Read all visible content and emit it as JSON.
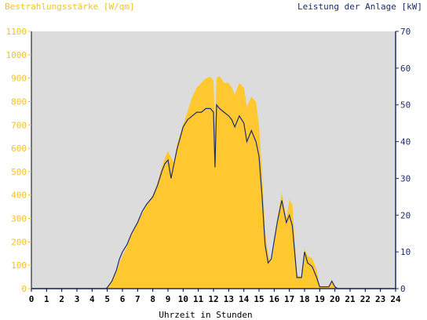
{
  "chart_data": {
    "type": "area",
    "title_left": "Bestrahlungsstärke [W/qm]",
    "title_right": "Leistung der Anlage [kW]",
    "xlabel": "Uhrzeit in Stunden",
    "xlim": [
      0,
      24
    ],
    "ylim_left": [
      0,
      1100
    ],
    "ylim_right": [
      0,
      70
    ],
    "x_ticks": [
      0,
      1,
      2,
      3,
      4,
      5,
      6,
      7,
      8,
      9,
      10,
      11,
      12,
      13,
      14,
      15,
      16,
      17,
      18,
      19,
      20,
      21,
      22,
      23,
      24
    ],
    "y_ticks_left": [
      0,
      100,
      200,
      300,
      400,
      500,
      600,
      700,
      800,
      900,
      1000,
      1100
    ],
    "y_ticks_right": [
      0,
      10,
      20,
      30,
      40,
      50,
      60,
      70
    ],
    "grid": false,
    "colors": {
      "irradiance": "#ffc830",
      "power": "#1e2d6b",
      "background": "#dcdcdc",
      "left_axis": "#f5c02a",
      "right_axis": "#1e2d6b"
    },
    "series": [
      {
        "axis": "left",
        "x": [
          0,
          4.9,
          5.0,
          5.3,
          5.6,
          5.8,
          6.0,
          6.3,
          6.6,
          7.0,
          7.3,
          7.6,
          8.0,
          8.3,
          8.6,
          8.8,
          9.0,
          9.2,
          9.4,
          9.6,
          9.8,
          10.0,
          10.3,
          10.6,
          10.9,
          11.2,
          11.5,
          11.8,
          12.0,
          12.1,
          12.2,
          12.4,
          12.7,
          13.0,
          13.2,
          13.4,
          13.7,
          14.0,
          14.2,
          14.5,
          14.8,
          15.0,
          15.2,
          15.4,
          15.6,
          15.8,
          16.0,
          16.2,
          16.5,
          16.8,
          17.0,
          17.2,
          17.5,
          17.8,
          18.0,
          18.2,
          18.5,
          18.8,
          19.0,
          19.3,
          19.6,
          19.8,
          20.0,
          20.2,
          20.4,
          24
        ],
        "y": [
          0,
          0,
          5,
          30,
          70,
          110,
          140,
          180,
          230,
          280,
          320,
          360,
          400,
          450,
          520,
          560,
          590,
          560,
          540,
          620,
          660,
          700,
          760,
          820,
          860,
          880,
          900,
          905,
          890,
          700,
          900,
          910,
          880,
          880,
          860,
          830,
          880,
          860,
          780,
          820,
          800,
          700,
          500,
          250,
          150,
          110,
          180,
          300,
          410,
          300,
          380,
          360,
          60,
          50,
          170,
          140,
          130,
          80,
          10,
          10,
          10,
          40,
          10,
          0,
          0,
          0
        ]
      },
      {
        "axis": "right",
        "x": [
          0,
          4.9,
          5.0,
          5.3,
          5.6,
          5.8,
          6.0,
          6.3,
          6.6,
          7.0,
          7.3,
          7.6,
          8.0,
          8.3,
          8.6,
          8.8,
          9.0,
          9.2,
          9.4,
          9.6,
          9.8,
          10.0,
          10.3,
          10.6,
          10.9,
          11.2,
          11.5,
          11.8,
          12.0,
          12.1,
          12.2,
          12.4,
          12.7,
          13.0,
          13.2,
          13.4,
          13.7,
          14.0,
          14.2,
          14.5,
          14.8,
          15.0,
          15.2,
          15.4,
          15.6,
          15.8,
          16.0,
          16.2,
          16.5,
          16.8,
          17.0,
          17.2,
          17.5,
          17.8,
          18.0,
          18.2,
          18.5,
          18.8,
          19.0,
          19.3,
          19.6,
          19.8,
          20.0,
          20.2,
          20.4,
          24
        ],
        "y": [
          0,
          0,
          0.3,
          2,
          5,
          8,
          10,
          12,
          15,
          18,
          21,
          23,
          25,
          28,
          32,
          34,
          35,
          30,
          34,
          38,
          41,
          44,
          46,
          47,
          48,
          48,
          49,
          49,
          48,
          33,
          50,
          49,
          48,
          47,
          46,
          44,
          47,
          45,
          40,
          43,
          40,
          36,
          25,
          12,
          7,
          8,
          13,
          18,
          24,
          18,
          20,
          17,
          3,
          3,
          10,
          7,
          6,
          3,
          0.5,
          0.5,
          0.5,
          2,
          0.5,
          0,
          0,
          0
        ]
      }
    ]
  }
}
